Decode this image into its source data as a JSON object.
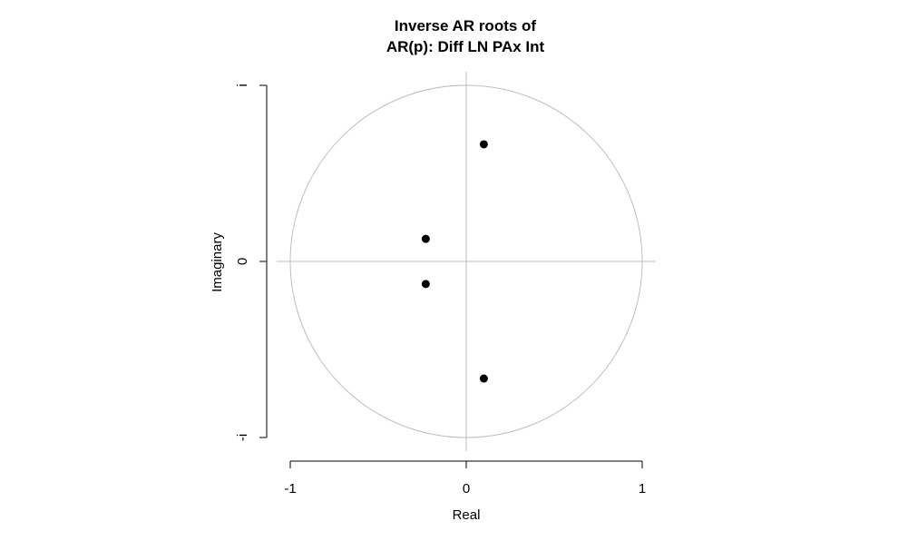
{
  "chart_data": {
    "type": "scatter",
    "title_lines": [
      "Inverse AR roots of",
      "AR(p): Diff LN PAx Int"
    ],
    "xlabel": "Real",
    "ylabel": "Imaginary",
    "xlim": [
      -1,
      1
    ],
    "ylim": [
      -1,
      1
    ],
    "x_ticks": [
      {
        "value": -1,
        "label": "-1"
      },
      {
        "value": 0,
        "label": "0"
      },
      {
        "value": 1,
        "label": "1"
      }
    ],
    "y_ticks": [
      {
        "value": -1,
        "label": "-i"
      },
      {
        "value": 0,
        "label": "0"
      },
      {
        "value": 1,
        "label": "i"
      }
    ],
    "unit_circle": true,
    "reference_lines": {
      "x": 0,
      "y": 0
    },
    "points": [
      {
        "x": 0.1,
        "y": 0.665
      },
      {
        "x": -0.23,
        "y": 0.128
      },
      {
        "x": -0.23,
        "y": -0.128
      },
      {
        "x": 0.1,
        "y": -0.665
      }
    ],
    "colors": {
      "points": "#000000",
      "circle": "#bebebe",
      "reference_lines": "#bebebe",
      "axes": "#000000"
    }
  }
}
